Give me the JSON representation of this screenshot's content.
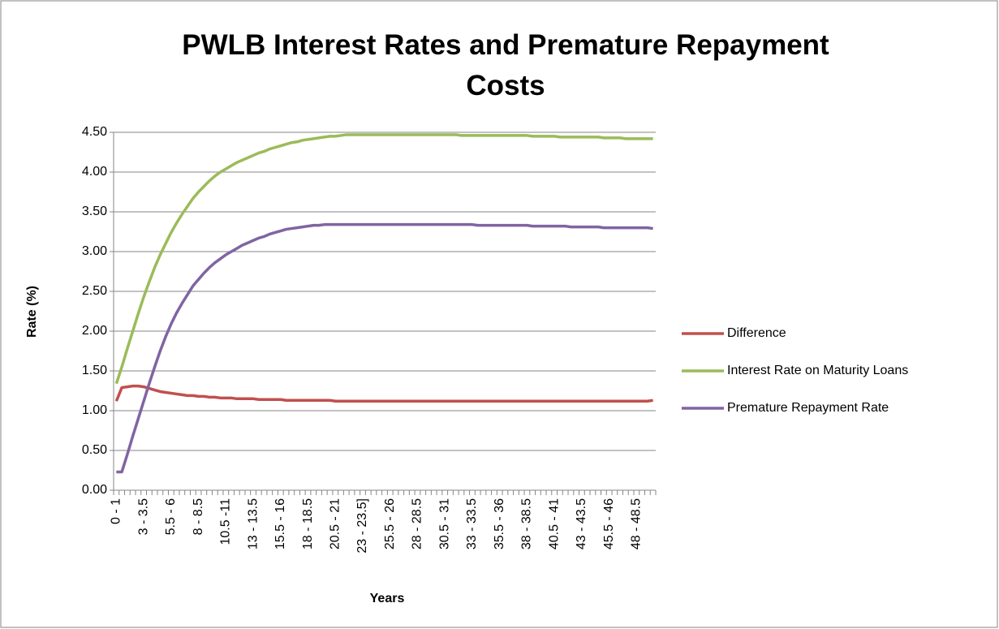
{
  "chart_data": {
    "type": "line",
    "title": "PWLB Interest Rates and Premature Repayment Costs",
    "xlabel": "Years",
    "ylabel": "Rate (%)",
    "categories": [
      "0 - 1",
      null,
      null,
      null,
      null,
      "3 - 3.5",
      null,
      null,
      null,
      null,
      "5.5 - 6",
      null,
      null,
      null,
      null,
      "8 - 8.5",
      null,
      null,
      null,
      null,
      "10.5 -11",
      null,
      null,
      null,
      null,
      "13 - 13.5",
      null,
      null,
      null,
      null,
      "15.5 - 16",
      null,
      null,
      null,
      null,
      "18 - 18.5",
      null,
      null,
      null,
      null,
      "20.5 - 21",
      null,
      null,
      null,
      null,
      "23 - 23.5]",
      null,
      null,
      null,
      null,
      "25.5 - 26",
      null,
      null,
      null,
      null,
      "28 - 28.5",
      null,
      null,
      null,
      null,
      "30.5 - 31",
      null,
      null,
      null,
      null,
      "33 - 33.5",
      null,
      null,
      null,
      null,
      "35.5 - 36",
      null,
      null,
      null,
      null,
      "38 - 38.5",
      null,
      null,
      null,
      null,
      "40.5 - 41",
      null,
      null,
      null,
      null,
      "43 - 43.5",
      null,
      null,
      null,
      null,
      "45.5 - 46",
      null,
      null,
      null,
      null,
      "48 - 48.5",
      null,
      null,
      null
    ],
    "series": [
      {
        "name": "Difference",
        "color": "#c0504d",
        "values": [
          1.12,
          1.29,
          1.3,
          1.31,
          1.31,
          1.3,
          1.28,
          1.26,
          1.24,
          1.23,
          1.22,
          1.21,
          1.2,
          1.19,
          1.19,
          1.18,
          1.18,
          1.17,
          1.17,
          1.16,
          1.16,
          1.16,
          1.15,
          1.15,
          1.15,
          1.15,
          1.14,
          1.14,
          1.14,
          1.14,
          1.14,
          1.13,
          1.13,
          1.13,
          1.13,
          1.13,
          1.13,
          1.13,
          1.13,
          1.13,
          1.12,
          1.12,
          1.12,
          1.12,
          1.12,
          1.12,
          1.12,
          1.12,
          1.12,
          1.12,
          1.12,
          1.12,
          1.12,
          1.12,
          1.12,
          1.12,
          1.12,
          1.12,
          1.12,
          1.12,
          1.12,
          1.12,
          1.12,
          1.12,
          1.12,
          1.12,
          1.12,
          1.12,
          1.12,
          1.12,
          1.12,
          1.12,
          1.12,
          1.12,
          1.12,
          1.12,
          1.12,
          1.12,
          1.12,
          1.12,
          1.12,
          1.12,
          1.12,
          1.12,
          1.12,
          1.12,
          1.12,
          1.12,
          1.12,
          1.12,
          1.12,
          1.12,
          1.12,
          1.12,
          1.12,
          1.12,
          1.12,
          1.12,
          1.13
        ]
      },
      {
        "name": "Interest Rate on Maturity Loans",
        "color": "#9bbb59",
        "values": [
          1.34,
          1.55,
          1.78,
          2.0,
          2.22,
          2.43,
          2.62,
          2.8,
          2.96,
          3.1,
          3.24,
          3.36,
          3.47,
          3.57,
          3.67,
          3.75,
          3.82,
          3.89,
          3.95,
          4.0,
          4.04,
          4.08,
          4.12,
          4.15,
          4.18,
          4.21,
          4.24,
          4.26,
          4.29,
          4.31,
          4.33,
          4.35,
          4.37,
          4.38,
          4.4,
          4.41,
          4.42,
          4.43,
          4.44,
          4.45,
          4.45,
          4.46,
          4.47,
          4.47,
          4.47,
          4.47,
          4.47,
          4.47,
          4.47,
          4.47,
          4.47,
          4.47,
          4.47,
          4.47,
          4.47,
          4.47,
          4.47,
          4.47,
          4.47,
          4.47,
          4.47,
          4.47,
          4.47,
          4.46,
          4.46,
          4.46,
          4.46,
          4.46,
          4.46,
          4.46,
          4.46,
          4.46,
          4.46,
          4.46,
          4.46,
          4.46,
          4.45,
          4.45,
          4.45,
          4.45,
          4.45,
          4.44,
          4.44,
          4.44,
          4.44,
          4.44,
          4.44,
          4.44,
          4.44,
          4.43,
          4.43,
          4.43,
          4.43,
          4.42,
          4.42,
          4.42,
          4.42,
          4.42,
          4.42
        ]
      },
      {
        "name": "Premature Repayment Rate",
        "color": "#8064a2",
        "values": [
          0.23,
          0.23,
          0.45,
          0.68,
          0.9,
          1.12,
          1.34,
          1.55,
          1.75,
          1.93,
          2.09,
          2.23,
          2.35,
          2.46,
          2.57,
          2.65,
          2.73,
          2.8,
          2.86,
          2.91,
          2.96,
          3.0,
          3.04,
          3.08,
          3.11,
          3.14,
          3.17,
          3.19,
          3.22,
          3.24,
          3.26,
          3.28,
          3.29,
          3.3,
          3.31,
          3.32,
          3.33,
          3.33,
          3.34,
          3.34,
          3.34,
          3.34,
          3.34,
          3.34,
          3.34,
          3.34,
          3.34,
          3.34,
          3.34,
          3.34,
          3.34,
          3.34,
          3.34,
          3.34,
          3.34,
          3.34,
          3.34,
          3.34,
          3.34,
          3.34,
          3.34,
          3.34,
          3.34,
          3.34,
          3.34,
          3.34,
          3.33,
          3.33,
          3.33,
          3.33,
          3.33,
          3.33,
          3.33,
          3.33,
          3.33,
          3.33,
          3.32,
          3.32,
          3.32,
          3.32,
          3.32,
          3.32,
          3.32,
          3.31,
          3.31,
          3.31,
          3.31,
          3.31,
          3.31,
          3.3,
          3.3,
          3.3,
          3.3,
          3.3,
          3.3,
          3.3,
          3.3,
          3.3,
          3.29
        ]
      }
    ],
    "ylim": [
      0,
      4.5
    ],
    "yticks": [
      {
        "value": 0,
        "label": "0.00"
      },
      {
        "value": 0.5,
        "label": "0.50"
      },
      {
        "value": 1,
        "label": "1.00"
      },
      {
        "value": 1.5,
        "label": "1.50"
      },
      {
        "value": 2,
        "label": "2.00"
      },
      {
        "value": 2.5,
        "label": "2.50"
      },
      {
        "value": 3,
        "label": "3.00"
      },
      {
        "value": 3.5,
        "label": "3.50"
      },
      {
        "value": 4,
        "label": "4.00"
      },
      {
        "value": 4.5,
        "label": "4.50"
      }
    ],
    "grid": true,
    "legend": "right"
  }
}
